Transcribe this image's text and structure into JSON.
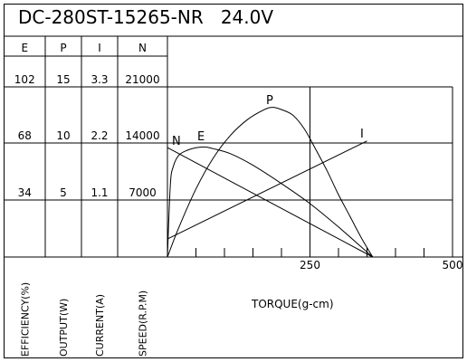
{
  "chart_data": {
    "type": "line",
    "title": "DC-280ST-15265-NR   24.0V",
    "xlabel": "TORQUE(g-cm)",
    "xlim": [
      0,
      500
    ],
    "x_ticks": [
      "250",
      "500"
    ],
    "axes": [
      {
        "header": "E",
        "label": "EFFICIENCY(%)",
        "ticks": [
          "102",
          "68",
          "34"
        ],
        "range": [
          0,
          102
        ]
      },
      {
        "header": "P",
        "label": "OUTPUT(W)",
        "ticks": [
          "15",
          "10",
          "5"
        ],
        "range": [
          0,
          15
        ]
      },
      {
        "header": "I",
        "label": "CURRENT(A)",
        "ticks": [
          "3.3",
          "2.2",
          "1.1"
        ],
        "range": [
          0,
          3.3
        ]
      },
      {
        "header": "N",
        "label": "SPEED(R.P.M)",
        "ticks": [
          "21000",
          "14000",
          "7000"
        ],
        "range": [
          0,
          21000
        ]
      }
    ],
    "grid": true,
    "series": [
      {
        "name": "N",
        "axis": "N",
        "x": [
          0,
          360
        ],
        "y": [
          13500,
          0
        ]
      },
      {
        "name": "I",
        "axis": "I",
        "x": [
          0,
          350
        ],
        "y": [
          0.35,
          2.25
        ]
      },
      {
        "name": "P",
        "axis": "P",
        "x": [
          0,
          20,
          50,
          80,
          110,
          140,
          170,
          185,
          200,
          220,
          240,
          260,
          280,
          300,
          320,
          340,
          360
        ],
        "y": [
          0,
          2.6,
          6,
          8.7,
          10.7,
          12.1,
          13,
          13.2,
          13,
          12.5,
          11.3,
          9.5,
          7.6,
          5.5,
          3.6,
          1.7,
          0
        ]
      },
      {
        "name": "E",
        "axis": "E",
        "x": [
          0,
          5,
          10,
          20,
          35,
          50,
          65,
          80,
          110,
          150,
          200,
          250,
          300,
          340,
          360
        ],
        "y": [
          0,
          43,
          54,
          61,
          64,
          65.5,
          66,
          65,
          62,
          55,
          44,
          32,
          18,
          6,
          0
        ]
      }
    ]
  }
}
